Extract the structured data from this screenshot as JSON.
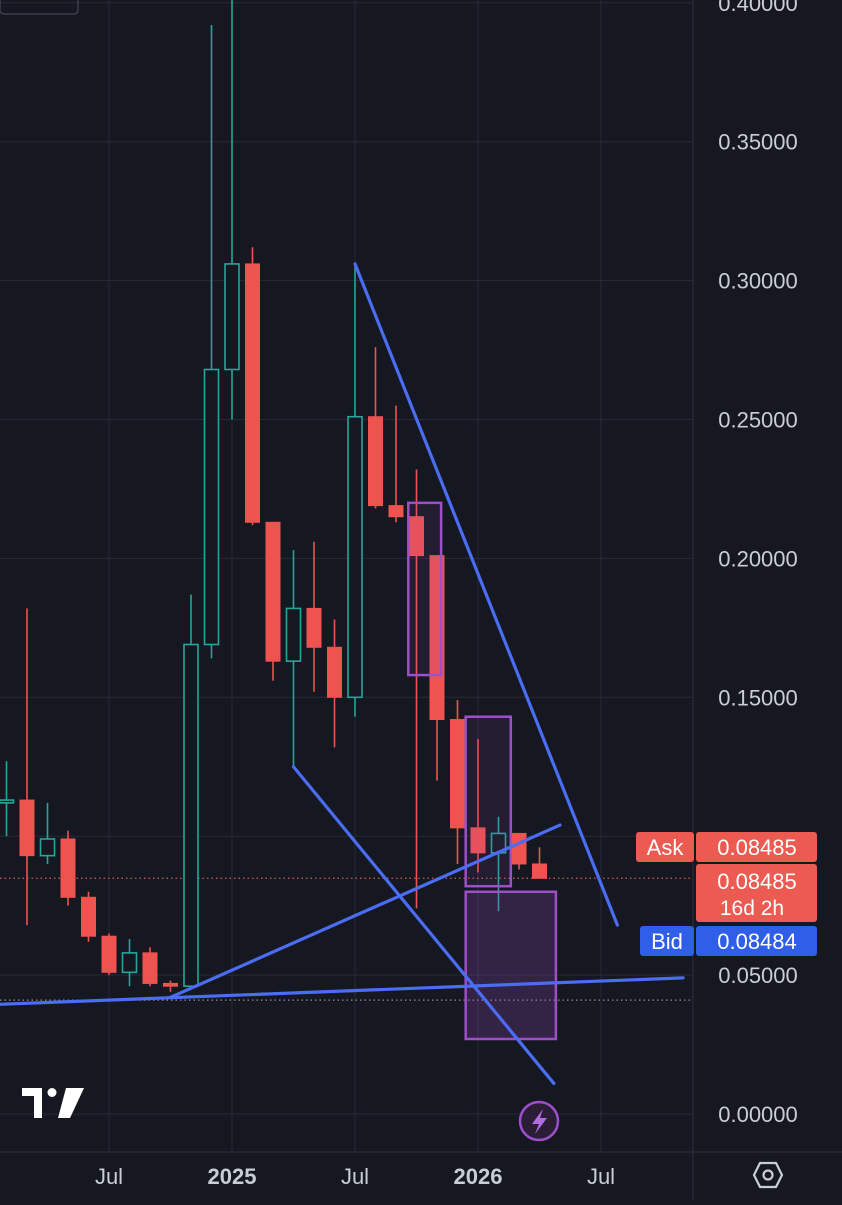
{
  "chart_data": {
    "type": "candlestick",
    "interval": "monthly",
    "y_ticks": [
      "0.40000",
      "0.35000",
      "0.30000",
      "0.25000",
      "0.20000",
      "0.15000",
      "0.05000",
      "0.00000"
    ],
    "ylim": [
      0,
      0.4
    ],
    "x_ticks": [
      {
        "label": "Jul",
        "date": "2024-07",
        "bold": false
      },
      {
        "label": "2025",
        "date": "2025-01",
        "bold": true
      },
      {
        "label": "Jul",
        "date": "2025-07",
        "bold": false
      },
      {
        "label": "2026",
        "date": "2026-01",
        "bold": true
      },
      {
        "label": "Jul",
        "date": "2026-07",
        "bold": false
      }
    ],
    "candles": [
      {
        "date": "2024-01",
        "open": 0.068,
        "high": 0.118,
        "low": 0.066,
        "close": 0.112
      },
      {
        "date": "2024-02",
        "open": 0.112,
        "high": 0.127,
        "low": 0.1,
        "close": 0.113
      },
      {
        "date": "2024-03",
        "open": 0.113,
        "high": 0.182,
        "low": 0.068,
        "close": 0.093
      },
      {
        "date": "2024-04",
        "open": 0.093,
        "high": 0.112,
        "low": 0.09,
        "close": 0.099
      },
      {
        "date": "2024-05",
        "open": 0.099,
        "high": 0.102,
        "low": 0.075,
        "close": 0.078
      },
      {
        "date": "2024-06",
        "open": 0.078,
        "high": 0.08,
        "low": 0.062,
        "close": 0.064
      },
      {
        "date": "2024-07",
        "open": 0.064,
        "high": 0.065,
        "low": 0.05,
        "close": 0.051
      },
      {
        "date": "2024-08",
        "open": 0.051,
        "high": 0.063,
        "low": 0.046,
        "close": 0.058
      },
      {
        "date": "2024-09",
        "open": 0.058,
        "high": 0.06,
        "low": 0.046,
        "close": 0.047
      },
      {
        "date": "2024-10",
        "open": 0.047,
        "high": 0.048,
        "low": 0.044,
        "close": 0.046
      },
      {
        "date": "2024-11",
        "open": 0.046,
        "high": 0.187,
        "low": 0.045,
        "close": 0.169
      },
      {
        "date": "2024-12",
        "open": 0.169,
        "high": 0.392,
        "low": 0.164,
        "close": 0.268
      },
      {
        "date": "2025-01",
        "open": 0.268,
        "high": 0.42,
        "low": 0.25,
        "close": 0.306
      },
      {
        "date": "2025-02",
        "open": 0.306,
        "high": 0.312,
        "low": 0.212,
        "close": 0.213
      },
      {
        "date": "2025-03",
        "open": 0.213,
        "high": 0.213,
        "low": 0.156,
        "close": 0.163
      },
      {
        "date": "2025-04",
        "open": 0.163,
        "high": 0.203,
        "low": 0.125,
        "close": 0.182
      },
      {
        "date": "2025-05",
        "open": 0.182,
        "high": 0.206,
        "low": 0.152,
        "close": 0.168
      },
      {
        "date": "2025-06",
        "open": 0.168,
        "high": 0.178,
        "low": 0.132,
        "close": 0.15
      },
      {
        "date": "2025-07",
        "open": 0.15,
        "high": 0.305,
        "low": 0.143,
        "close": 0.251
      },
      {
        "date": "2025-08",
        "open": 0.251,
        "high": 0.276,
        "low": 0.218,
        "close": 0.219
      },
      {
        "date": "2025-09",
        "open": 0.219,
        "high": 0.255,
        "low": 0.213,
        "close": 0.215
      },
      {
        "date": "2025-10",
        "open": 0.215,
        "high": 0.232,
        "low": 0.074,
        "close": 0.201
      },
      {
        "date": "2025-11",
        "open": 0.201,
        "high": 0.201,
        "low": 0.12,
        "close": 0.142
      },
      {
        "date": "2025-12",
        "open": 0.142,
        "high": 0.149,
        "low": 0.09,
        "close": 0.103
      },
      {
        "date": "2026-01",
        "open": 0.103,
        "high": 0.135,
        "low": 0.087,
        "close": 0.094
      },
      {
        "date": "2026-02",
        "open": 0.094,
        "high": 0.107,
        "low": 0.073,
        "close": 0.101
      },
      {
        "date": "2026-03",
        "open": 0.101,
        "high": 0.101,
        "low": 0.088,
        "close": 0.09
      },
      {
        "date": "2026-04",
        "open": 0.09,
        "high": 0.096,
        "low": 0.086,
        "close": 0.08485
      }
    ],
    "trendlines": [
      {
        "from": {
          "date": "2025-07",
          "value": 0.306
        },
        "to": {
          "date": "2026-07.8",
          "value": 0.068
        }
      },
      {
        "from": {
          "date": "2025-04",
          "value": 0.125
        },
        "to": {
          "date": "2026-04.7",
          "value": 0.011
        }
      },
      {
        "from": {
          "date": "2024-10",
          "value": 0.042
        },
        "to": {
          "date": "2026-05",
          "value": 0.104
        }
      },
      {
        "from": {
          "date": "2023-12",
          "value": 0.039
        },
        "to": {
          "date": "2026-11",
          "value": 0.049
        }
      }
    ],
    "boxes": [
      {
        "from": "2025-09.6",
        "to": "2025-11.2",
        "top": 0.22,
        "bottom": 0.158,
        "fill": false
      },
      {
        "from": "2025-12.4",
        "to": "2026-02.6",
        "top": 0.143,
        "bottom": 0.082,
        "fill": false
      },
      {
        "from": "2025-12.4",
        "to": "2026-04.8",
        "top": 0.08,
        "bottom": 0.027,
        "fill": true
      }
    ],
    "dotted_levels": [
      {
        "value": 0.08485,
        "color": "#d9574d"
      },
      {
        "value": 0.041,
        "color": "#8c8f99"
      }
    ],
    "price_tags": {
      "ask_label": "Ask",
      "ask_value": "0.08485",
      "last_value": "0.08485",
      "countdown": "16d 2h",
      "bid_label": "Bid",
      "bid_value": "0.08484"
    },
    "colors": {
      "up": "#26a69a",
      "down": "#ef5350",
      "trendline": "#4b6cf5",
      "box": "#9c4fc9",
      "bid_tag": "#2f5ee8",
      "ask_tag": "#ec5b52"
    }
  },
  "ui": {
    "logo_text": "TV",
    "lightning_icon": "lightning-icon",
    "settings_icon": "gear-icon"
  }
}
